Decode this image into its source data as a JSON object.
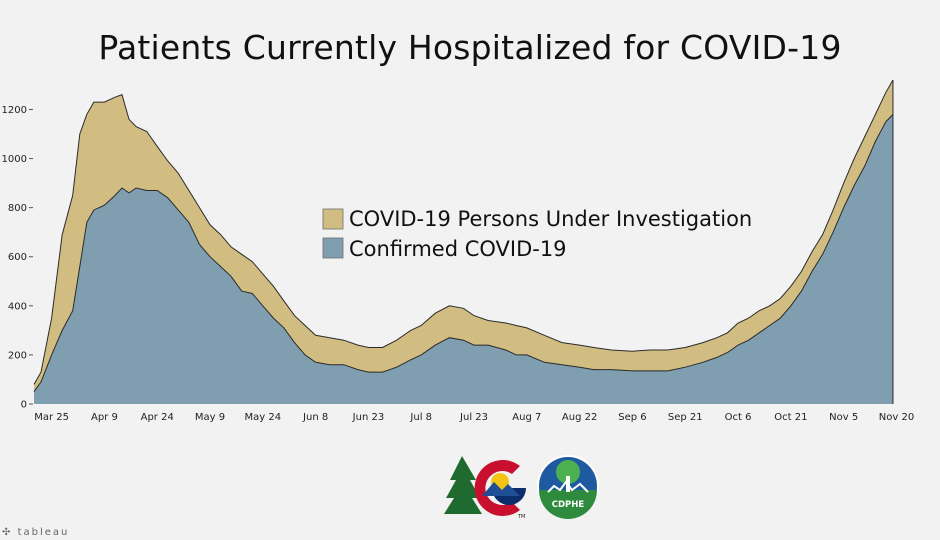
{
  "chart_data": {
    "type": "area",
    "title": "Patients Currently Hospitalized for COVID-19",
    "xlabel": "",
    "ylabel": "",
    "stacked": true,
    "x_start": "2020-03-20",
    "x_end": "2020-11-20",
    "xlim": [
      "2020-03-20",
      "2020-11-21"
    ],
    "ylim": [
      0,
      1320
    ],
    "y_ticks": [
      0,
      200,
      400,
      600,
      800,
      1000,
      1200
    ],
    "y_tick_labels": [
      "0",
      "200",
      "400",
      "600",
      "800",
      "1000",
      "1200"
    ],
    "x_ticks": [
      "2020-03-25",
      "2020-04-09",
      "2020-04-24",
      "2020-05-09",
      "2020-05-24",
      "2020-06-08",
      "2020-06-23",
      "2020-07-08",
      "2020-07-23",
      "2020-08-07",
      "2020-08-22",
      "2020-09-06",
      "2020-09-21",
      "2020-10-06",
      "2020-10-21",
      "2020-11-05",
      "2020-11-20"
    ],
    "x_tick_labels": [
      "Mar 25",
      "Apr 9",
      "Apr 24",
      "May 9",
      "May 24",
      "Jun 8",
      "Jun 23",
      "Jul 8",
      "Jul 23",
      "Aug 7",
      "Aug 22",
      "Sep 6",
      "Sep 21",
      "Oct 6",
      "Oct 21",
      "Nov 5",
      "Nov 20"
    ],
    "legend_position": "center",
    "series": [
      {
        "name": "Confirmed COVID-19",
        "color": "#7f9fb0",
        "points": [
          [
            "2020-03-20",
            50
          ],
          [
            "2020-03-22",
            90
          ],
          [
            "2020-03-25",
            200
          ],
          [
            "2020-03-28",
            300
          ],
          [
            "2020-03-31",
            380
          ],
          [
            "2020-04-02",
            560
          ],
          [
            "2020-04-04",
            740
          ],
          [
            "2020-04-06",
            790
          ],
          [
            "2020-04-09",
            810
          ],
          [
            "2020-04-12",
            850
          ],
          [
            "2020-04-14",
            880
          ],
          [
            "2020-04-16",
            860
          ],
          [
            "2020-04-18",
            880
          ],
          [
            "2020-04-21",
            870
          ],
          [
            "2020-04-24",
            870
          ],
          [
            "2020-04-27",
            840
          ],
          [
            "2020-04-30",
            790
          ],
          [
            "2020-05-03",
            740
          ],
          [
            "2020-05-06",
            650
          ],
          [
            "2020-05-09",
            600
          ],
          [
            "2020-05-12",
            560
          ],
          [
            "2020-05-15",
            520
          ],
          [
            "2020-05-18",
            460
          ],
          [
            "2020-05-21",
            450
          ],
          [
            "2020-05-24",
            400
          ],
          [
            "2020-05-27",
            350
          ],
          [
            "2020-05-30",
            310
          ],
          [
            "2020-06-02",
            250
          ],
          [
            "2020-06-05",
            200
          ],
          [
            "2020-06-08",
            170
          ],
          [
            "2020-06-12",
            160
          ],
          [
            "2020-06-16",
            160
          ],
          [
            "2020-06-20",
            140
          ],
          [
            "2020-06-23",
            130
          ],
          [
            "2020-06-27",
            130
          ],
          [
            "2020-07-01",
            150
          ],
          [
            "2020-07-05",
            180
          ],
          [
            "2020-07-08",
            200
          ],
          [
            "2020-07-12",
            240
          ],
          [
            "2020-07-16",
            270
          ],
          [
            "2020-07-20",
            260
          ],
          [
            "2020-07-23",
            240
          ],
          [
            "2020-07-27",
            240
          ],
          [
            "2020-08-01",
            220
          ],
          [
            "2020-08-04",
            200
          ],
          [
            "2020-08-07",
            200
          ],
          [
            "2020-08-12",
            170
          ],
          [
            "2020-08-17",
            160
          ],
          [
            "2020-08-22",
            150
          ],
          [
            "2020-08-26",
            140
          ],
          [
            "2020-08-31",
            140
          ],
          [
            "2020-09-06",
            135
          ],
          [
            "2020-09-11",
            135
          ],
          [
            "2020-09-16",
            135
          ],
          [
            "2020-09-21",
            150
          ],
          [
            "2020-09-26",
            170
          ],
          [
            "2020-09-30",
            190
          ],
          [
            "2020-10-03",
            210
          ],
          [
            "2020-10-06",
            240
          ],
          [
            "2020-10-09",
            260
          ],
          [
            "2020-10-12",
            290
          ],
          [
            "2020-10-15",
            320
          ],
          [
            "2020-10-18",
            350
          ],
          [
            "2020-10-21",
            400
          ],
          [
            "2020-10-24",
            460
          ],
          [
            "2020-10-27",
            540
          ],
          [
            "2020-10-30",
            610
          ],
          [
            "2020-11-02",
            700
          ],
          [
            "2020-11-05",
            800
          ],
          [
            "2020-11-08",
            890
          ],
          [
            "2020-11-11",
            970
          ],
          [
            "2020-11-14",
            1070
          ],
          [
            "2020-11-17",
            1150
          ],
          [
            "2020-11-19",
            1180
          ]
        ]
      },
      {
        "name": "COVID-19 Persons Under Investigation",
        "color": "#d1bd82",
        "points": [
          [
            "2020-03-20",
            30
          ],
          [
            "2020-03-22",
            40
          ],
          [
            "2020-03-25",
            150
          ],
          [
            "2020-03-28",
            390
          ],
          [
            "2020-03-31",
            470
          ],
          [
            "2020-04-02",
            540
          ],
          [
            "2020-04-04",
            440
          ],
          [
            "2020-04-06",
            440
          ],
          [
            "2020-04-09",
            420
          ],
          [
            "2020-04-12",
            400
          ],
          [
            "2020-04-14",
            380
          ],
          [
            "2020-04-16",
            300
          ],
          [
            "2020-04-18",
            250
          ],
          [
            "2020-04-21",
            240
          ],
          [
            "2020-04-24",
            180
          ],
          [
            "2020-04-27",
            150
          ],
          [
            "2020-04-30",
            150
          ],
          [
            "2020-05-03",
            130
          ],
          [
            "2020-05-06",
            150
          ],
          [
            "2020-05-09",
            130
          ],
          [
            "2020-05-12",
            130
          ],
          [
            "2020-05-15",
            120
          ],
          [
            "2020-05-18",
            150
          ],
          [
            "2020-05-21",
            130
          ],
          [
            "2020-05-24",
            130
          ],
          [
            "2020-05-27",
            130
          ],
          [
            "2020-05-30",
            110
          ],
          [
            "2020-06-02",
            110
          ],
          [
            "2020-06-05",
            120
          ],
          [
            "2020-06-08",
            110
          ],
          [
            "2020-06-12",
            110
          ],
          [
            "2020-06-16",
            100
          ],
          [
            "2020-06-20",
            100
          ],
          [
            "2020-06-23",
            100
          ],
          [
            "2020-06-27",
            100
          ],
          [
            "2020-07-01",
            110
          ],
          [
            "2020-07-05",
            120
          ],
          [
            "2020-07-08",
            120
          ],
          [
            "2020-07-12",
            130
          ],
          [
            "2020-07-16",
            130
          ],
          [
            "2020-07-20",
            130
          ],
          [
            "2020-07-23",
            120
          ],
          [
            "2020-07-27",
            100
          ],
          [
            "2020-08-01",
            110
          ],
          [
            "2020-08-04",
            120
          ],
          [
            "2020-08-07",
            110
          ],
          [
            "2020-08-12",
            110
          ],
          [
            "2020-08-17",
            90
          ],
          [
            "2020-08-22",
            90
          ],
          [
            "2020-08-26",
            90
          ],
          [
            "2020-08-31",
            80
          ],
          [
            "2020-09-06",
            80
          ],
          [
            "2020-09-11",
            85
          ],
          [
            "2020-09-16",
            85
          ],
          [
            "2020-09-21",
            80
          ],
          [
            "2020-09-26",
            80
          ],
          [
            "2020-09-30",
            80
          ],
          [
            "2020-10-03",
            80
          ],
          [
            "2020-10-06",
            90
          ],
          [
            "2020-10-09",
            90
          ],
          [
            "2020-10-12",
            90
          ],
          [
            "2020-10-15",
            80
          ],
          [
            "2020-10-18",
            80
          ],
          [
            "2020-10-21",
            80
          ],
          [
            "2020-10-24",
            80
          ],
          [
            "2020-10-27",
            80
          ],
          [
            "2020-10-30",
            80
          ],
          [
            "2020-11-02",
            90
          ],
          [
            "2020-11-05",
            100
          ],
          [
            "2020-11-08",
            110
          ],
          [
            "2020-11-11",
            120
          ],
          [
            "2020-11-14",
            110
          ],
          [
            "2020-11-17",
            120
          ],
          [
            "2020-11-19",
            140
          ]
        ]
      }
    ]
  },
  "legend": {
    "items": [
      {
        "label": "COVID-19 Persons Under Investigation",
        "color": "#d1bd82"
      },
      {
        "label": "Confirmed COVID-19",
        "color": "#7f9fb0"
      }
    ]
  },
  "logos": {
    "colorado": {
      "icon": "colorado-logo-icon",
      "mark": "TM"
    },
    "cdphe": {
      "icon": "cdphe-logo-icon",
      "text": "CDPHE"
    }
  },
  "footer": {
    "brand": "tableau",
    "icon": "tableau-logo-icon"
  }
}
